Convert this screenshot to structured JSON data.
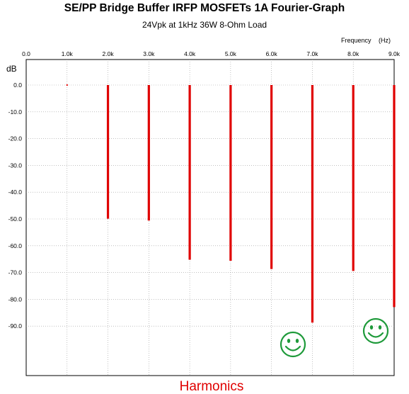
{
  "chart_data": {
    "type": "bar",
    "title": "SE/PP Bridge Buffer IRFP MOSFETs 1A Fourier-Graph",
    "subtitle": "24Vpk at 1kHz 36W 8-Ohm Load",
    "xlabel": "Frequency",
    "xunit": "(Hz)",
    "ylabel": "dB",
    "footer_label": "Harmonics",
    "xlim": [
      0,
      9000
    ],
    "ylim": [
      -97,
      0
    ],
    "x_ticks": [
      0,
      1000,
      2000,
      3000,
      4000,
      5000,
      6000,
      7000,
      8000,
      9000
    ],
    "x_tick_labels": [
      "0.0",
      "1.0k",
      "2.0k",
      "3.0k",
      "4.0k",
      "5.0k",
      "6.0k",
      "7.0k",
      "8.0k",
      "9.0k"
    ],
    "y_ticks": [
      0,
      -10,
      -20,
      -30,
      -40,
      -50,
      -60,
      -70,
      -80,
      -90
    ],
    "y_tick_labels": [
      "0.0",
      "-10.0",
      "-20.0",
      "-30.0",
      "-40.0",
      "-50.0",
      "-60.0",
      "-70.0",
      "-80.0",
      "-90.0"
    ],
    "grid": true,
    "series": [
      {
        "frequencies_hz": [
          1000,
          2000,
          3000,
          4000,
          5000,
          6000,
          7000,
          8000,
          9000
        ],
        "levels_db": [
          0,
          -49.9,
          -50.6,
          -65.2,
          -65.6,
          -68.7,
          -88.7,
          -69.4,
          -82.9
        ],
        "color": "#e00000"
      }
    ],
    "annotations": [
      {
        "icon": "smiley-icon",
        "near_frequency_hz": 7000,
        "color": "#1e9a3a"
      },
      {
        "icon": "smiley-icon",
        "near_frequency_hz": 9000,
        "color": "#1e9a3a"
      }
    ]
  }
}
